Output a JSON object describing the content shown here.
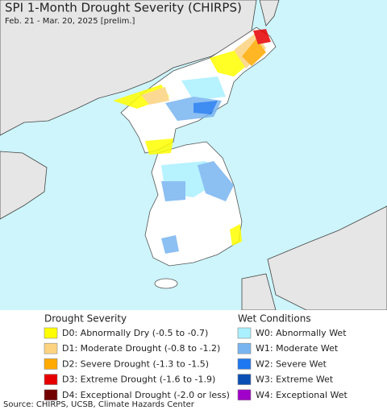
{
  "header": {
    "title": "SPI 1-Month Drought Severity (CHIRPS)",
    "subtitle": "Feb. 21 - Mar. 20, 2025 [prelim.]"
  },
  "legend": {
    "drought": {
      "title": "Drought Severity",
      "items": [
        {
          "label": "D0: Abnormally Dry (-0.5 to -0.7)",
          "color": "#ffff00"
        },
        {
          "label": "D1: Moderate Drought (-0.8 to -1.2)",
          "color": "#fcd37f"
        },
        {
          "label": "D2: Severe Drought (-1.3 to -1.5)",
          "color": "#ffaa00"
        },
        {
          "label": "D3: Extreme Drought (-1.6 to -1.9)",
          "color": "#e60000"
        },
        {
          "label": "D4: Exceptional Drought (-2.0 or less)",
          "color": "#730000"
        }
      ]
    },
    "wet": {
      "title": "Wet Conditions",
      "items": [
        {
          "label": "W0: Abnormally Wet",
          "color": "#aaf0ff"
        },
        {
          "label": "W1: Moderate Wet",
          "color": "#78b4f0"
        },
        {
          "label": "W2: Severe Wet",
          "color": "#1e78f0"
        },
        {
          "label": "W3: Extreme Wet",
          "color": "#0a50b4"
        },
        {
          "label": "W4: Exceptional Wet",
          "color": "#a000c8"
        }
      ]
    }
  },
  "source": "Source: CHIRPS, UCSB, Climate Hazards Center"
}
